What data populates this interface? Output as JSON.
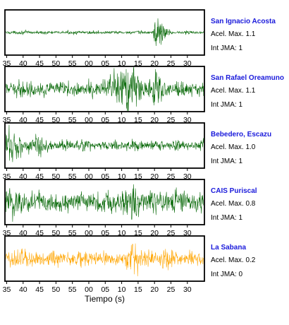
{
  "chart_data": {
    "type": "line",
    "xlabel": "Tiempo (s)",
    "tick_labels": [
      "35",
      "40",
      "45",
      "50",
      "55",
      "00",
      "05",
      "10",
      "15",
      "20",
      "25",
      "30"
    ],
    "info_labels": {
      "accel_prefix": "Acel. Max.",
      "jma_prefix": "Int JMA:"
    },
    "grid": false,
    "legend": "none",
    "series": [
      {
        "name": "San Ignacio Acosta",
        "accel_max": "1.1",
        "int_jma": "1",
        "color": "#006400",
        "waveform": {
          "base": 0.07,
          "noise": 0.03,
          "events": [
            {
              "t": 20.5,
              "amp": 0.9,
              "width": 0.6
            },
            {
              "t": 21.5,
              "amp": 0.45,
              "width": 1.2
            },
            {
              "t": 23,
              "amp": 0.2,
              "width": 1.5
            }
          ]
        }
      },
      {
        "name": "San Rafael Oreamuno",
        "accel_max": "1.1",
        "int_jma": "1",
        "color": "#006400",
        "waveform": {
          "base": 0.3,
          "noise": 0.15,
          "events": [
            {
              "t": 9,
              "amp": 0.55,
              "width": 4
            },
            {
              "t": 13,
              "amp": 0.6,
              "width": 3
            },
            {
              "t": 20,
              "amp": 0.55,
              "width": 2
            }
          ]
        }
      },
      {
        "name": "Bebedero, Escazu",
        "accel_max": "1.0",
        "int_jma": "1",
        "color": "#006400",
        "waveform": {
          "base": 0.2,
          "noise": 0.12,
          "events": [
            {
              "t": -24,
              "amp": 0.75,
              "width": 3
            },
            {
              "t": -16,
              "amp": 0.35,
              "width": 3
            }
          ]
        }
      },
      {
        "name": "CAIS Puriscal",
        "accel_max": "0.8",
        "int_jma": "1",
        "color": "#006400",
        "waveform": {
          "base": 0.45,
          "noise": 0.2,
          "events": [
            {
              "t": -24,
              "amp": 0.4,
              "width": 4
            },
            {
              "t": 14,
              "amp": 0.35,
              "width": 3
            }
          ]
        }
      },
      {
        "name": "La Sabana",
        "accel_max": "0.2",
        "int_jma": "0",
        "color": "#ffa500",
        "waveform": {
          "base": 0.3,
          "noise": 0.15,
          "events": [
            {
              "t": -20,
              "amp": 0.3,
              "width": 2
            },
            {
              "t": 14,
              "amp": 0.6,
              "width": 1.5
            },
            {
              "t": 23,
              "amp": 0.35,
              "width": 1.5
            }
          ]
        }
      }
    ]
  }
}
